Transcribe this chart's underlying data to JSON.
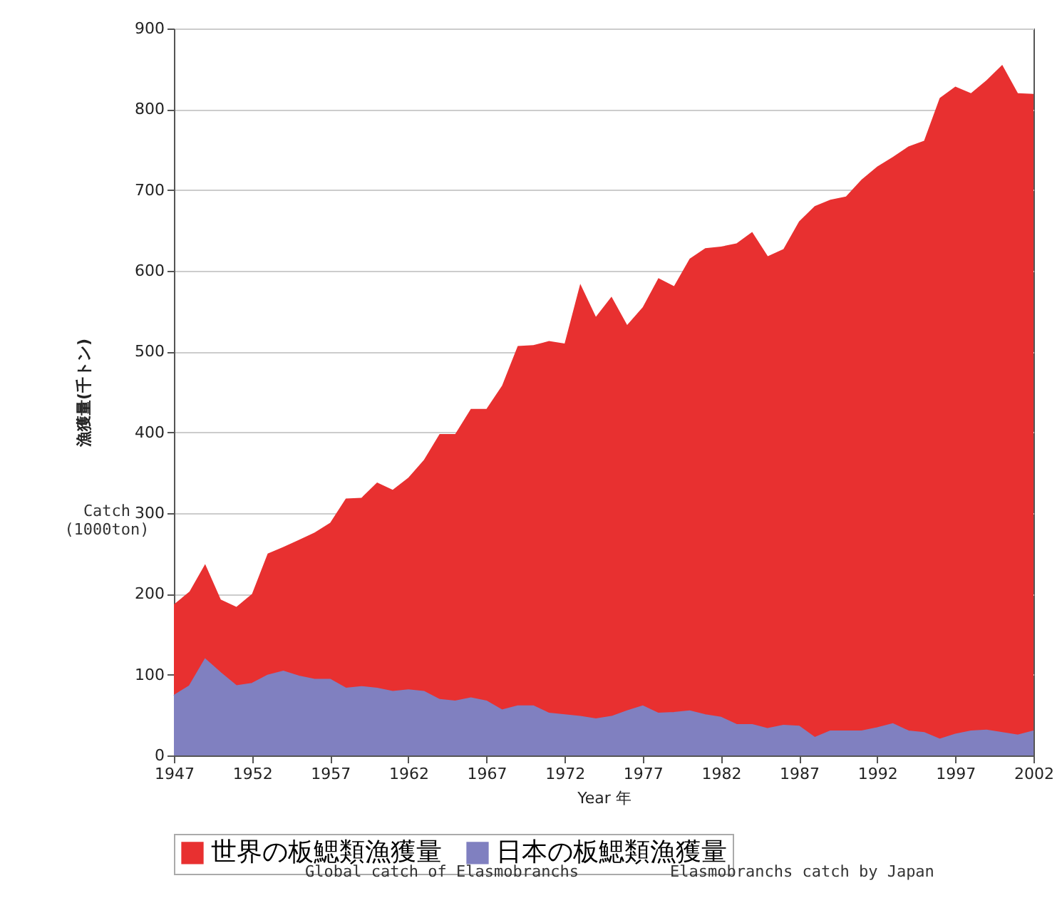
{
  "chart_data": {
    "type": "area",
    "xlabel": "Year 年",
    "ylabel": "漁獲量(千トン)",
    "x": [
      1947,
      1948,
      1949,
      1950,
      1951,
      1952,
      1953,
      1954,
      1955,
      1956,
      1957,
      1958,
      1959,
      1960,
      1961,
      1962,
      1963,
      1964,
      1965,
      1966,
      1967,
      1968,
      1969,
      1970,
      1971,
      1972,
      1973,
      1974,
      1975,
      1976,
      1977,
      1978,
      1979,
      1980,
      1981,
      1982,
      1983,
      1984,
      1985,
      1986,
      1987,
      1988,
      1989,
      1990,
      1991,
      1992,
      1993,
      1994,
      1995,
      1996,
      1997,
      1998,
      1999,
      2000,
      2001,
      2002
    ],
    "series": [
      {
        "name": "世界の板鰓類漁獲量",
        "color": "#e83030",
        "values": [
          187,
          203,
          237,
          193,
          184,
          200,
          250,
          258,
          267,
          276,
          288,
          318,
          319,
          338,
          329,
          344,
          366,
          398,
          398,
          429,
          429,
          458,
          507,
          508,
          513,
          510,
          584,
          543,
          568,
          533,
          555,
          591,
          581,
          615,
          628,
          630,
          634,
          648,
          618,
          627,
          661,
          680,
          688,
          692,
          713,
          729,
          741,
          754,
          761,
          814,
          828,
          820,
          836,
          855,
          820,
          819
        ]
      },
      {
        "name": "日本の板鰓類漁獲量",
        "color": "#8080c0",
        "values": [
          74,
          86,
          119,
          102,
          86,
          89,
          99,
          104,
          98,
          94,
          94,
          83,
          85,
          83,
          79,
          81,
          79,
          69,
          67,
          71,
          67,
          56,
          61,
          61,
          52,
          50,
          48,
          45,
          48,
          55,
          61,
          52,
          53,
          55,
          50,
          47,
          38,
          38,
          33,
          37,
          36,
          22,
          30,
          30,
          30,
          34,
          39,
          30,
          28,
          20,
          26,
          30,
          31,
          28,
          25,
          30
        ]
      }
    ],
    "xlim": [
      1947,
      2002
    ],
    "xticks": [
      1947,
      1952,
      1957,
      1962,
      1967,
      1972,
      1977,
      1982,
      1987,
      1992,
      1997,
      2002
    ],
    "ylim": [
      0,
      900
    ],
    "yticks": [
      0,
      100,
      200,
      300,
      400,
      500,
      600,
      700,
      800,
      900
    ],
    "grid": "y",
    "legend": "bottom",
    "annotations": [
      "Catch (1000ton)",
      "Global catch of Elasmobranchs",
      "Elasmobranchs catch by Japan"
    ]
  }
}
